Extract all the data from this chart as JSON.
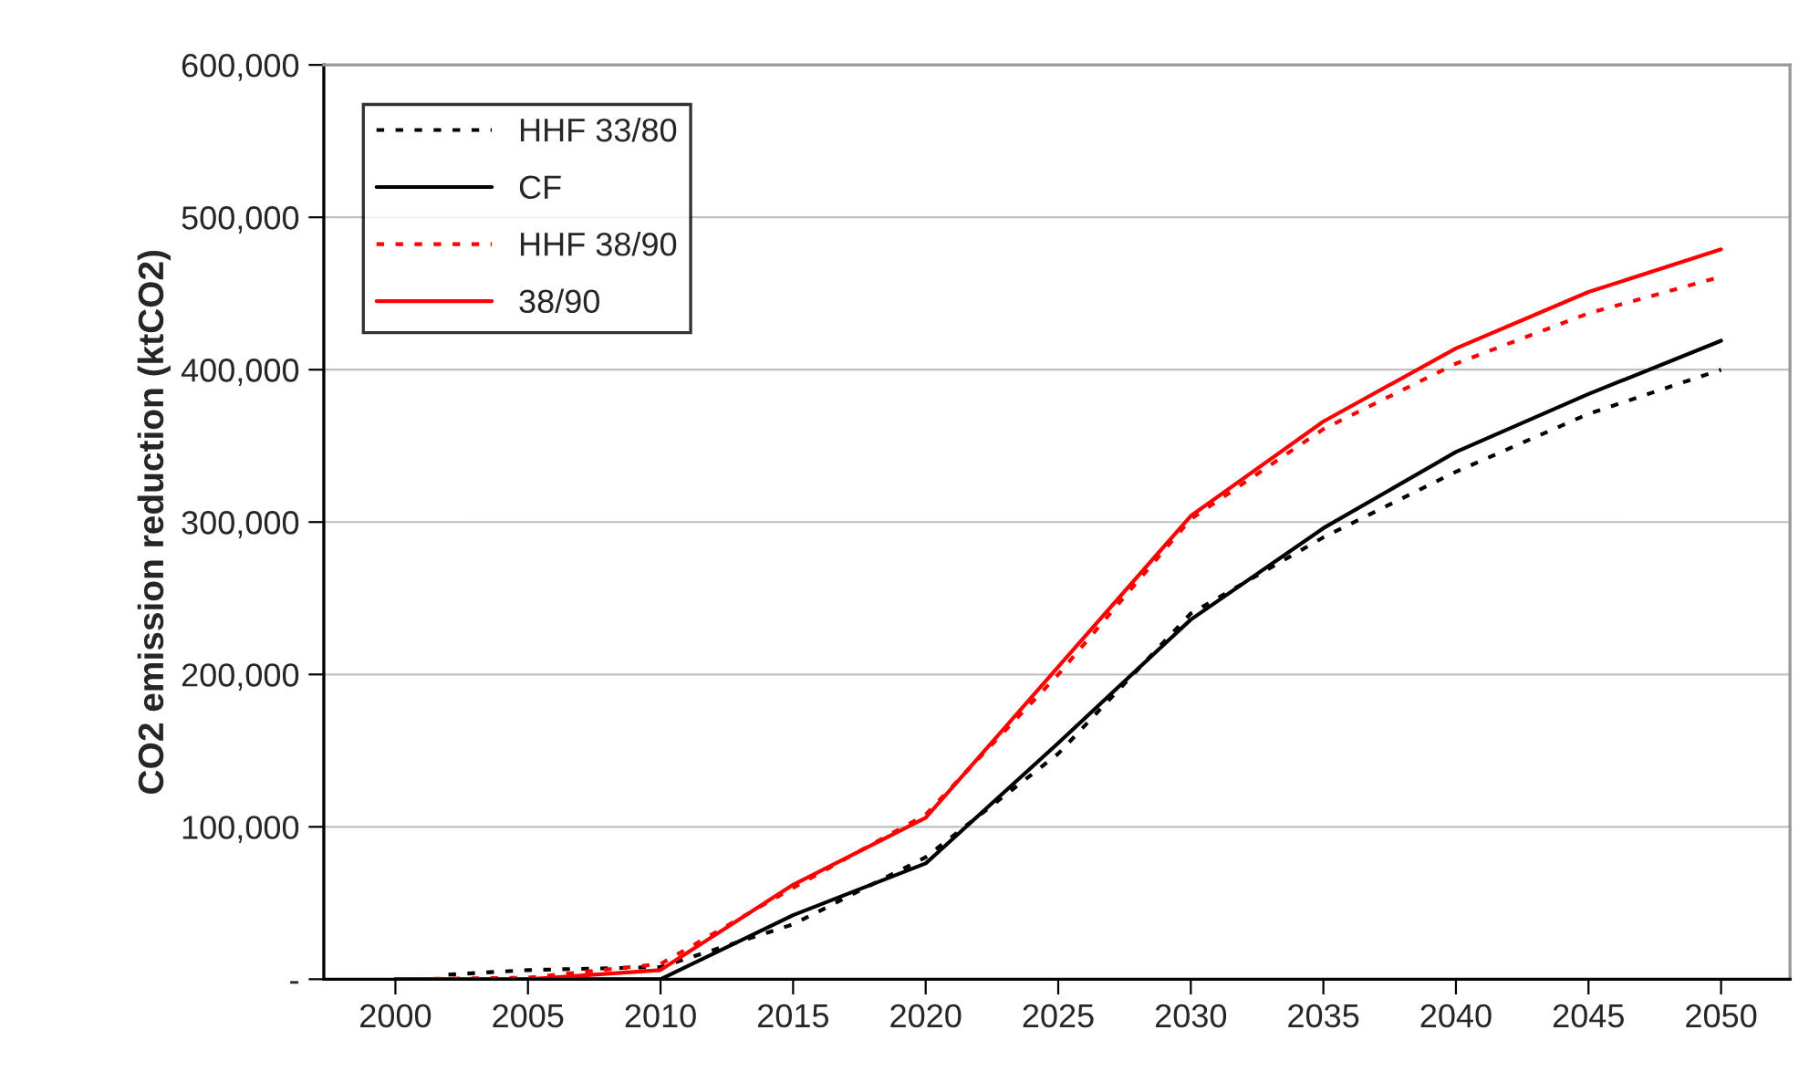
{
  "chart_data": {
    "type": "line",
    "ylabel": "CO2 emission reduction (ktCO2)",
    "x": [
      2000,
      2005,
      2010,
      2015,
      2020,
      2025,
      2030,
      2035,
      2040,
      2045,
      2050
    ],
    "series": [
      {
        "name": "HHF 33/80",
        "color": "#000000",
        "line_style": "dotted",
        "x": [
          2002,
          2005,
          2010,
          2015,
          2020,
          2025,
          2030,
          2035,
          2040,
          2045,
          2050
        ],
        "values": [
          3000,
          6000,
          8000,
          36000,
          80000,
          148000,
          240000,
          290000,
          333000,
          371000,
          400000
        ]
      },
      {
        "name": "CF",
        "color": "#000000",
        "line_style": "solid",
        "values": [
          0,
          0,
          0,
          42000,
          76000,
          155000,
          236000,
          296000,
          346000,
          384000,
          419000
        ]
      },
      {
        "name": "HHF 38/90",
        "color": "#ff0000",
        "line_style": "dotted",
        "values": [
          0,
          1000,
          10000,
          60000,
          108000,
          200000,
          302000,
          361000,
          404000,
          437000,
          461000
        ]
      },
      {
        "name": "38/90",
        "color": "#ff0000",
        "line_style": "solid",
        "values": [
          0,
          0,
          6000,
          62000,
          106000,
          205000,
          304000,
          366000,
          414000,
          451000,
          479000
        ]
      }
    ],
    "xlim": [
      1997.3,
      2052.6
    ],
    "xticks": [
      2000,
      2005,
      2010,
      2015,
      2020,
      2025,
      2030,
      2035,
      2040,
      2045,
      2050
    ],
    "ylim": [
      0,
      600000
    ],
    "yticks": [
      {
        "value": 0,
        "label": "-"
      },
      {
        "value": 100000,
        "label": "100,000"
      },
      {
        "value": 200000,
        "label": "200,000"
      },
      {
        "value": 300000,
        "label": "300,000"
      },
      {
        "value": 400000,
        "label": "400,000"
      },
      {
        "value": 500000,
        "label": "500,000"
      },
      {
        "value": 600000,
        "label": "600,000"
      }
    ],
    "grid": "y",
    "legend": "top left",
    "marker": "none"
  }
}
